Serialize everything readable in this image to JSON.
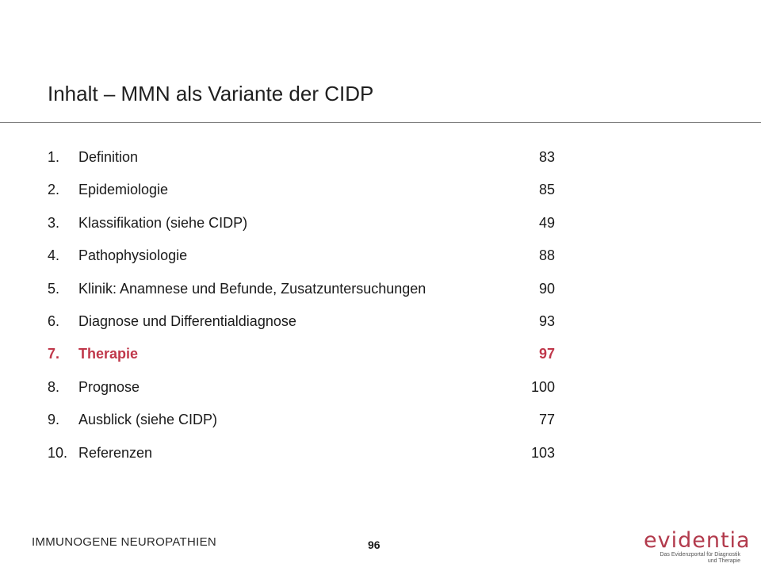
{
  "title": "Inhalt – MMN als Variante der CIDP",
  "toc": [
    {
      "num": "1.",
      "label": "Definition",
      "page": "83",
      "active": false
    },
    {
      "num": "2.",
      "label": "Epidemiologie",
      "page": "85",
      "active": false
    },
    {
      "num": "3.",
      "label": "Klassifikation (siehe CIDP)",
      "page": "49",
      "active": false
    },
    {
      "num": "4.",
      "label": "Pathophysiologie",
      "page": "88",
      "active": false
    },
    {
      "num": "5.",
      "label": "Klinik: Anamnese und Befunde, Zusatzuntersuchungen",
      "page": "90",
      "active": false
    },
    {
      "num": "6.",
      "label": "Diagnose und Differentialdiagnose",
      "page": "93",
      "active": false
    },
    {
      "num": "7.",
      "label": "Therapie",
      "page": "97",
      "active": true
    },
    {
      "num": "8.",
      "label": "Prognose",
      "page": "100",
      "active": false
    },
    {
      "num": "9.",
      "label": "Ausblick (siehe CIDP)",
      "page": "77",
      "active": false
    },
    {
      "num": "10.",
      "label": "Referenzen",
      "page": "103",
      "active": false
    }
  ],
  "footer": {
    "section": "IMMUNOGENE NEUROPATHIEN",
    "page_number": "96",
    "logo_word": "evidentia",
    "logo_tagline_1": "Das Evidenzportal für Diagnostik",
    "logo_tagline_2": "und Therapie"
  },
  "colors": {
    "accent": "#c0384b",
    "logo": "#b23a4c",
    "text": "#1a1a1a",
    "rule": "#7f7f7f"
  }
}
